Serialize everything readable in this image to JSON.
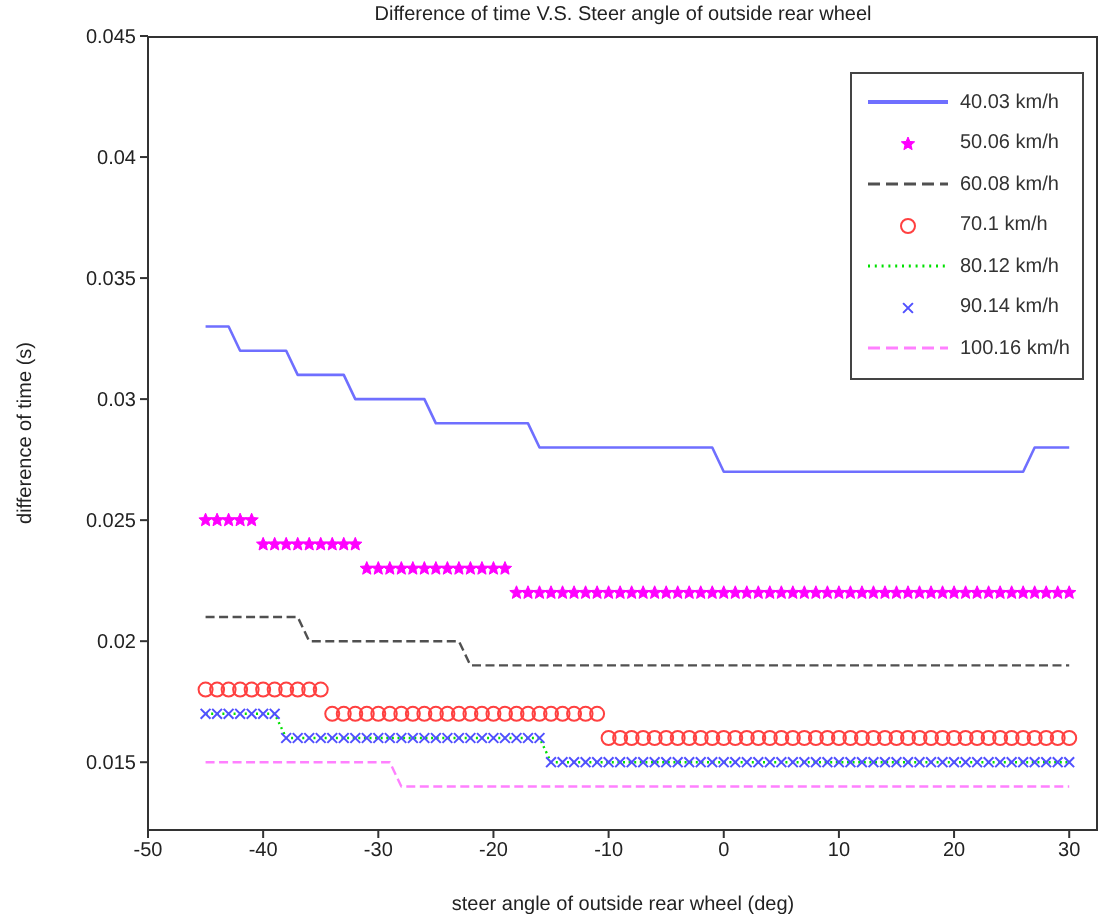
{
  "chart_data": {
    "type": "line",
    "title": "Difference of time V.S. Steer angle of outside rear wheel",
    "xlabel": "steer angle of outside rear wheel (deg)",
    "ylabel": "difference of time (s)",
    "x": [
      -45,
      -44,
      -43,
      -42,
      -41,
      -40,
      -39,
      -38,
      -37,
      -36,
      -35,
      -34,
      -33,
      -32,
      -31,
      -30,
      -29,
      -28,
      -27,
      -26,
      -25,
      -24,
      -23,
      -22,
      -21,
      -20,
      -19,
      -18,
      -17,
      -16,
      -15,
      -14,
      -13,
      -12,
      -11,
      -10,
      -9,
      -8,
      -7,
      -6,
      -5,
      -4,
      -3,
      -2,
      -1,
      0,
      1,
      2,
      3,
      4,
      5,
      6,
      7,
      8,
      9,
      10,
      11,
      12,
      13,
      14,
      15,
      16,
      17,
      18,
      19,
      20,
      21,
      22,
      23,
      24,
      25,
      26,
      27,
      28,
      29,
      30
    ],
    "xlim": [
      -50,
      32.5
    ],
    "xticks": [
      -50,
      -40,
      -30,
      -20,
      -10,
      0,
      10,
      20,
      30
    ],
    "ylim": [
      0.0122,
      0.045
    ],
    "yticks": [
      0.015,
      0.02,
      0.025,
      0.03,
      0.035,
      0.04,
      0.045
    ],
    "grid": false,
    "legend": "top right",
    "series": [
      {
        "name": "40.03 km/h",
        "color": "#6f6fff",
        "line_style": "solid",
        "marker": "none",
        "values": [
          0.033,
          0.033,
          0.033,
          0.032,
          0.032,
          0.032,
          0.032,
          0.032,
          0.031,
          0.031,
          0.031,
          0.031,
          0.031,
          0.03,
          0.03,
          0.03,
          0.03,
          0.03,
          0.03,
          0.03,
          0.029,
          0.029,
          0.029,
          0.029,
          0.029,
          0.029,
          0.029,
          0.029,
          0.029,
          0.028,
          0.028,
          0.028,
          0.028,
          0.028,
          0.028,
          0.028,
          0.028,
          0.028,
          0.028,
          0.028,
          0.028,
          0.028,
          0.028,
          0.028,
          0.028,
          0.027,
          0.027,
          0.027,
          0.027,
          0.027,
          0.027,
          0.027,
          0.027,
          0.027,
          0.027,
          0.027,
          0.027,
          0.027,
          0.027,
          0.027,
          0.027,
          0.027,
          0.027,
          0.027,
          0.027,
          0.027,
          0.027,
          0.027,
          0.027,
          0.027,
          0.027,
          0.027,
          0.028,
          0.028,
          0.028,
          0.028
        ]
      },
      {
        "name": "50.06 km/h",
        "type": "scatter",
        "color": "#ff00ff",
        "marker": "star",
        "values": [
          0.025,
          0.025,
          0.025,
          0.025,
          0.025,
          0.024,
          0.024,
          0.024,
          0.024,
          0.024,
          0.024,
          0.024,
          0.024,
          0.024,
          0.023,
          0.023,
          0.023,
          0.023,
          0.023,
          0.023,
          0.023,
          0.023,
          0.023,
          0.023,
          0.023,
          0.023,
          0.023,
          0.022,
          0.022,
          0.022,
          0.022,
          0.022,
          0.022,
          0.022,
          0.022,
          0.022,
          0.022,
          0.022,
          0.022,
          0.022,
          0.022,
          0.022,
          0.022,
          0.022,
          0.022,
          0.022,
          0.022,
          0.022,
          0.022,
          0.022,
          0.022,
          0.022,
          0.022,
          0.022,
          0.022,
          0.022,
          0.022,
          0.022,
          0.022,
          0.022,
          0.022,
          0.022,
          0.022,
          0.022,
          0.022,
          0.022,
          0.022,
          0.022,
          0.022,
          0.022,
          0.022,
          0.022,
          0.022,
          0.022,
          0.022,
          0.022
        ]
      },
      {
        "name": "60.08 km/h",
        "color": "#505050",
        "line_style": "dashed",
        "marker": "none",
        "values": [
          0.021,
          0.021,
          0.021,
          0.021,
          0.021,
          0.021,
          0.021,
          0.021,
          0.021,
          0.02,
          0.02,
          0.02,
          0.02,
          0.02,
          0.02,
          0.02,
          0.02,
          0.02,
          0.02,
          0.02,
          0.02,
          0.02,
          0.02,
          0.019,
          0.019,
          0.019,
          0.019,
          0.019,
          0.019,
          0.019,
          0.019,
          0.019,
          0.019,
          0.019,
          0.019,
          0.019,
          0.019,
          0.019,
          0.019,
          0.019,
          0.019,
          0.019,
          0.019,
          0.019,
          0.019,
          0.019,
          0.019,
          0.019,
          0.019,
          0.019,
          0.019,
          0.019,
          0.019,
          0.019,
          0.019,
          0.019,
          0.019,
          0.019,
          0.019,
          0.019,
          0.019,
          0.019,
          0.019,
          0.019,
          0.019,
          0.019,
          0.019,
          0.019,
          0.019,
          0.019,
          0.019,
          0.019,
          0.019,
          0.019,
          0.019,
          0.019
        ]
      },
      {
        "name": "70.1 km/h",
        "type": "scatter",
        "color": "#ff4040",
        "marker": "circle",
        "values": [
          0.018,
          0.018,
          0.018,
          0.018,
          0.018,
          0.018,
          0.018,
          0.018,
          0.018,
          0.018,
          0.018,
          0.017,
          0.017,
          0.017,
          0.017,
          0.017,
          0.017,
          0.017,
          0.017,
          0.017,
          0.017,
          0.017,
          0.017,
          0.017,
          0.017,
          0.017,
          0.017,
          0.017,
          0.017,
          0.017,
          0.017,
          0.017,
          0.017,
          0.017,
          0.017,
          0.016,
          0.016,
          0.016,
          0.016,
          0.016,
          0.016,
          0.016,
          0.016,
          0.016,
          0.016,
          0.016,
          0.016,
          0.016,
          0.016,
          0.016,
          0.016,
          0.016,
          0.016,
          0.016,
          0.016,
          0.016,
          0.016,
          0.016,
          0.016,
          0.016,
          0.016,
          0.016,
          0.016,
          0.016,
          0.016,
          0.016,
          0.016,
          0.016,
          0.016,
          0.016,
          0.016,
          0.016,
          0.016,
          0.016,
          0.016,
          0.016
        ]
      },
      {
        "name": "80.12 km/h",
        "color": "#00e000",
        "line_style": "dotted",
        "marker": "none",
        "values": [
          0.017,
          0.017,
          0.017,
          0.017,
          0.017,
          0.017,
          0.017,
          0.016,
          0.016,
          0.016,
          0.016,
          0.016,
          0.016,
          0.016,
          0.016,
          0.016,
          0.016,
          0.016,
          0.016,
          0.016,
          0.016,
          0.016,
          0.016,
          0.016,
          0.016,
          0.016,
          0.016,
          0.016,
          0.016,
          0.016,
          0.015,
          0.015,
          0.015,
          0.015,
          0.015,
          0.015,
          0.015,
          0.015,
          0.015,
          0.015,
          0.015,
          0.015,
          0.015,
          0.015,
          0.015,
          0.015,
          0.015,
          0.015,
          0.015,
          0.015,
          0.015,
          0.015,
          0.015,
          0.015,
          0.015,
          0.015,
          0.015,
          0.015,
          0.015,
          0.015,
          0.015,
          0.015,
          0.015,
          0.015,
          0.015,
          0.015,
          0.015,
          0.015,
          0.015,
          0.015,
          0.015,
          0.015,
          0.015,
          0.015,
          0.015,
          0.015
        ]
      },
      {
        "name": "90.14 km/h",
        "type": "scatter",
        "color": "#5050ff",
        "marker": "cross",
        "values": [
          0.017,
          0.017,
          0.017,
          0.017,
          0.017,
          0.017,
          0.017,
          0.016,
          0.016,
          0.016,
          0.016,
          0.016,
          0.016,
          0.016,
          0.016,
          0.016,
          0.016,
          0.016,
          0.016,
          0.016,
          0.016,
          0.016,
          0.016,
          0.016,
          0.016,
          0.016,
          0.016,
          0.016,
          0.016,
          0.016,
          0.015,
          0.015,
          0.015,
          0.015,
          0.015,
          0.015,
          0.015,
          0.015,
          0.015,
          0.015,
          0.015,
          0.015,
          0.015,
          0.015,
          0.015,
          0.015,
          0.015,
          0.015,
          0.015,
          0.015,
          0.015,
          0.015,
          0.015,
          0.015,
          0.015,
          0.015,
          0.015,
          0.015,
          0.015,
          0.015,
          0.015,
          0.015,
          0.015,
          0.015,
          0.015,
          0.015,
          0.015,
          0.015,
          0.015,
          0.015,
          0.015,
          0.015,
          0.015,
          0.015,
          0.015,
          0.015
        ]
      },
      {
        "name": "100.16 km/h",
        "color": "#ff80ff",
        "line_style": "dashed",
        "marker": "none",
        "values": [
          0.015,
          0.015,
          0.015,
          0.015,
          0.015,
          0.015,
          0.015,
          0.015,
          0.015,
          0.015,
          0.015,
          0.015,
          0.015,
          0.015,
          0.015,
          0.015,
          0.015,
          0.014,
          0.014,
          0.014,
          0.014,
          0.014,
          0.014,
          0.014,
          0.014,
          0.014,
          0.014,
          0.014,
          0.014,
          0.014,
          0.014,
          0.014,
          0.014,
          0.014,
          0.014,
          0.014,
          0.014,
          0.014,
          0.014,
          0.014,
          0.014,
          0.014,
          0.014,
          0.014,
          0.014,
          0.014,
          0.014,
          0.014,
          0.014,
          0.014,
          0.014,
          0.014,
          0.014,
          0.014,
          0.014,
          0.014,
          0.014,
          0.014,
          0.014,
          0.014,
          0.014,
          0.014,
          0.014,
          0.014,
          0.014,
          0.014,
          0.014,
          0.014,
          0.014,
          0.014,
          0.014,
          0.014,
          0.014,
          0.014,
          0.014,
          0.014
        ]
      }
    ]
  }
}
